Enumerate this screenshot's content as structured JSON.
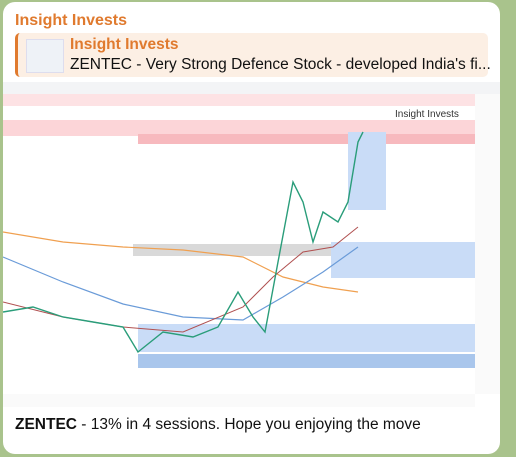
{
  "sender": "Insight Invests",
  "reply": {
    "name": "Insight Invests",
    "text": "ZENTEC - Very Strong Defence Stock - developed India's fi..."
  },
  "image": {
    "watermark": "Insight Invests"
  },
  "message": {
    "bold": "ZENTEC",
    "text": " - 13% in 4 sessions. Hope you enjoying the move"
  }
}
